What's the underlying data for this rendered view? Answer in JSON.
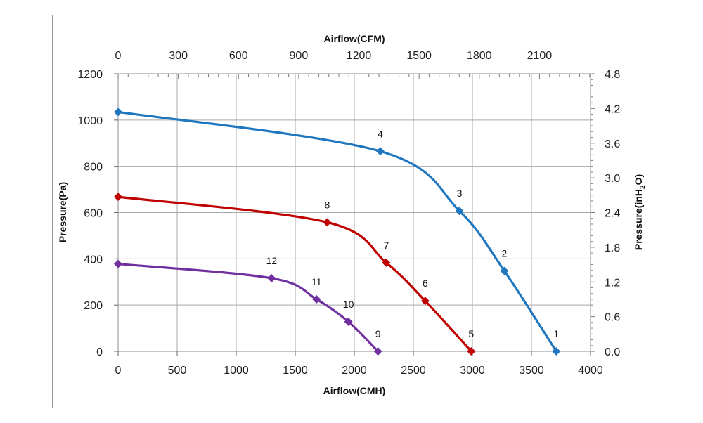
{
  "chart_data": {
    "type": "line",
    "axes": {
      "x_bottom": {
        "label": "Airflow(CMH)",
        "range": [
          0,
          4000
        ],
        "ticks": [
          0,
          500,
          1000,
          1500,
          2000,
          2500,
          3000,
          3500,
          4000
        ]
      },
      "x_top": {
        "label": "Airflow(CFM)",
        "ticks": [
          "0",
          "300",
          "600",
          "900",
          "1200",
          "1500",
          "1800",
          "2100"
        ]
      },
      "y_left": {
        "label": "Pressure(Pa)",
        "range": [
          0,
          1200
        ],
        "ticks": [
          0,
          200,
          400,
          600,
          800,
          1000,
          1200
        ]
      },
      "y_right": {
        "label_main": "Pressure(inH",
        "label_sub": "2",
        "label_end": "O)",
        "ticks": [
          "0.0",
          "0.6",
          "1.2",
          "1.8",
          "2.4",
          "3.0",
          "3.6",
          "4.2",
          "4.8"
        ]
      }
    },
    "grid": true,
    "series": [
      {
        "color": "#1f77c0",
        "points": [
          {
            "x": 0,
            "y": 1035,
            "label": ""
          },
          {
            "x": 2220,
            "y": 865,
            "label": "4"
          },
          {
            "x": 2890,
            "y": 607,
            "label": "3"
          },
          {
            "x": 3270,
            "y": 348,
            "label": "2"
          },
          {
            "x": 3710,
            "y": 0,
            "label": "1"
          }
        ]
      },
      {
        "color": "#c00000",
        "points": [
          {
            "x": 0,
            "y": 668,
            "label": ""
          },
          {
            "x": 1770,
            "y": 558,
            "label": "8"
          },
          {
            "x": 2270,
            "y": 383,
            "label": "7"
          },
          {
            "x": 2600,
            "y": 218,
            "label": "6"
          },
          {
            "x": 2990,
            "y": 0,
            "label": "5"
          }
        ]
      },
      {
        "color": "#7030a0",
        "points": [
          {
            "x": 0,
            "y": 378,
            "label": ""
          },
          {
            "x": 1300,
            "y": 316,
            "label": "12"
          },
          {
            "x": 1680,
            "y": 225,
            "label": "11"
          },
          {
            "x": 1950,
            "y": 128,
            "label": "10"
          },
          {
            "x": 2200,
            "y": 0,
            "label": "9"
          }
        ]
      }
    ]
  }
}
